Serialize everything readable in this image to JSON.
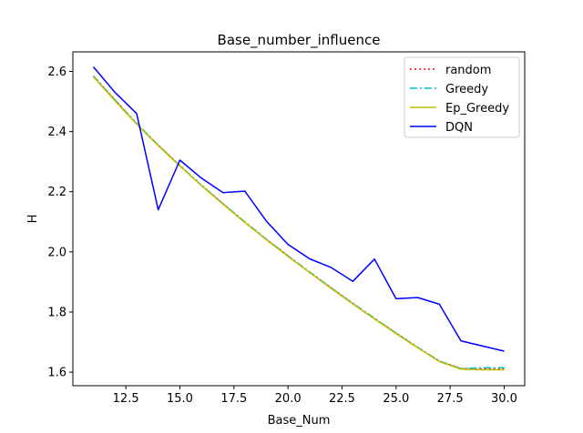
{
  "chart_data": {
    "type": "line",
    "title": "Base_number_influence",
    "xlabel": "Base_Num",
    "ylabel": "H",
    "xlim": [
      10.05,
      30.95
    ],
    "ylim": [
      1.555,
      2.665
    ],
    "xticks": [
      12.5,
      15.0,
      17.5,
      20.0,
      22.5,
      25.0,
      27.5,
      30.0
    ],
    "xtick_labels": [
      "12.5",
      "15.0",
      "17.5",
      "20.0",
      "22.5",
      "25.0",
      "27.5",
      "30.0"
    ],
    "yticks": [
      1.6,
      1.8,
      2.0,
      2.2,
      2.4,
      2.6
    ],
    "ytick_labels": [
      "1.6",
      "1.8",
      "2.0",
      "2.2",
      "2.4",
      "2.6"
    ],
    "grid": false,
    "legend_position": "upper right",
    "x": [
      11,
      12,
      13,
      14,
      15,
      16,
      17,
      18,
      19,
      20,
      21,
      22,
      23,
      24,
      25,
      26,
      27,
      28,
      29,
      30
    ],
    "series": [
      {
        "name": "random",
        "color": "#ff0000",
        "style": "dotted",
        "values": [
          2.585,
          2.505,
          2.427,
          2.355,
          2.287,
          2.222,
          2.16,
          2.1,
          2.042,
          1.987,
          1.933,
          1.88,
          1.829,
          1.779,
          1.73,
          1.683,
          1.637,
          1.612,
          1.61,
          1.61
        ]
      },
      {
        "name": "Greedy",
        "color": "#00bfbf",
        "style": "dashdot",
        "values": [
          2.585,
          2.505,
          2.427,
          2.355,
          2.287,
          2.222,
          2.16,
          2.1,
          2.042,
          1.987,
          1.933,
          1.88,
          1.829,
          1.779,
          1.73,
          1.683,
          1.637,
          1.612,
          1.615,
          1.615
        ]
      },
      {
        "name": "Ep_Greedy",
        "color": "#bfbf00",
        "style": "solid",
        "values": [
          2.582,
          2.502,
          2.425,
          2.353,
          2.285,
          2.22,
          2.158,
          2.098,
          2.04,
          1.985,
          1.931,
          1.878,
          1.827,
          1.777,
          1.728,
          1.681,
          1.635,
          1.61,
          1.608,
          1.608
        ]
      },
      {
        "name": "DQN",
        "color": "#0000ff",
        "style": "solid",
        "values": [
          2.615,
          2.53,
          2.46,
          2.14,
          2.305,
          2.245,
          2.197,
          2.202,
          2.102,
          2.025,
          1.977,
          1.948,
          1.902,
          1.976,
          1.844,
          1.848,
          1.826,
          1.704,
          1.687,
          1.67
        ]
      }
    ]
  }
}
